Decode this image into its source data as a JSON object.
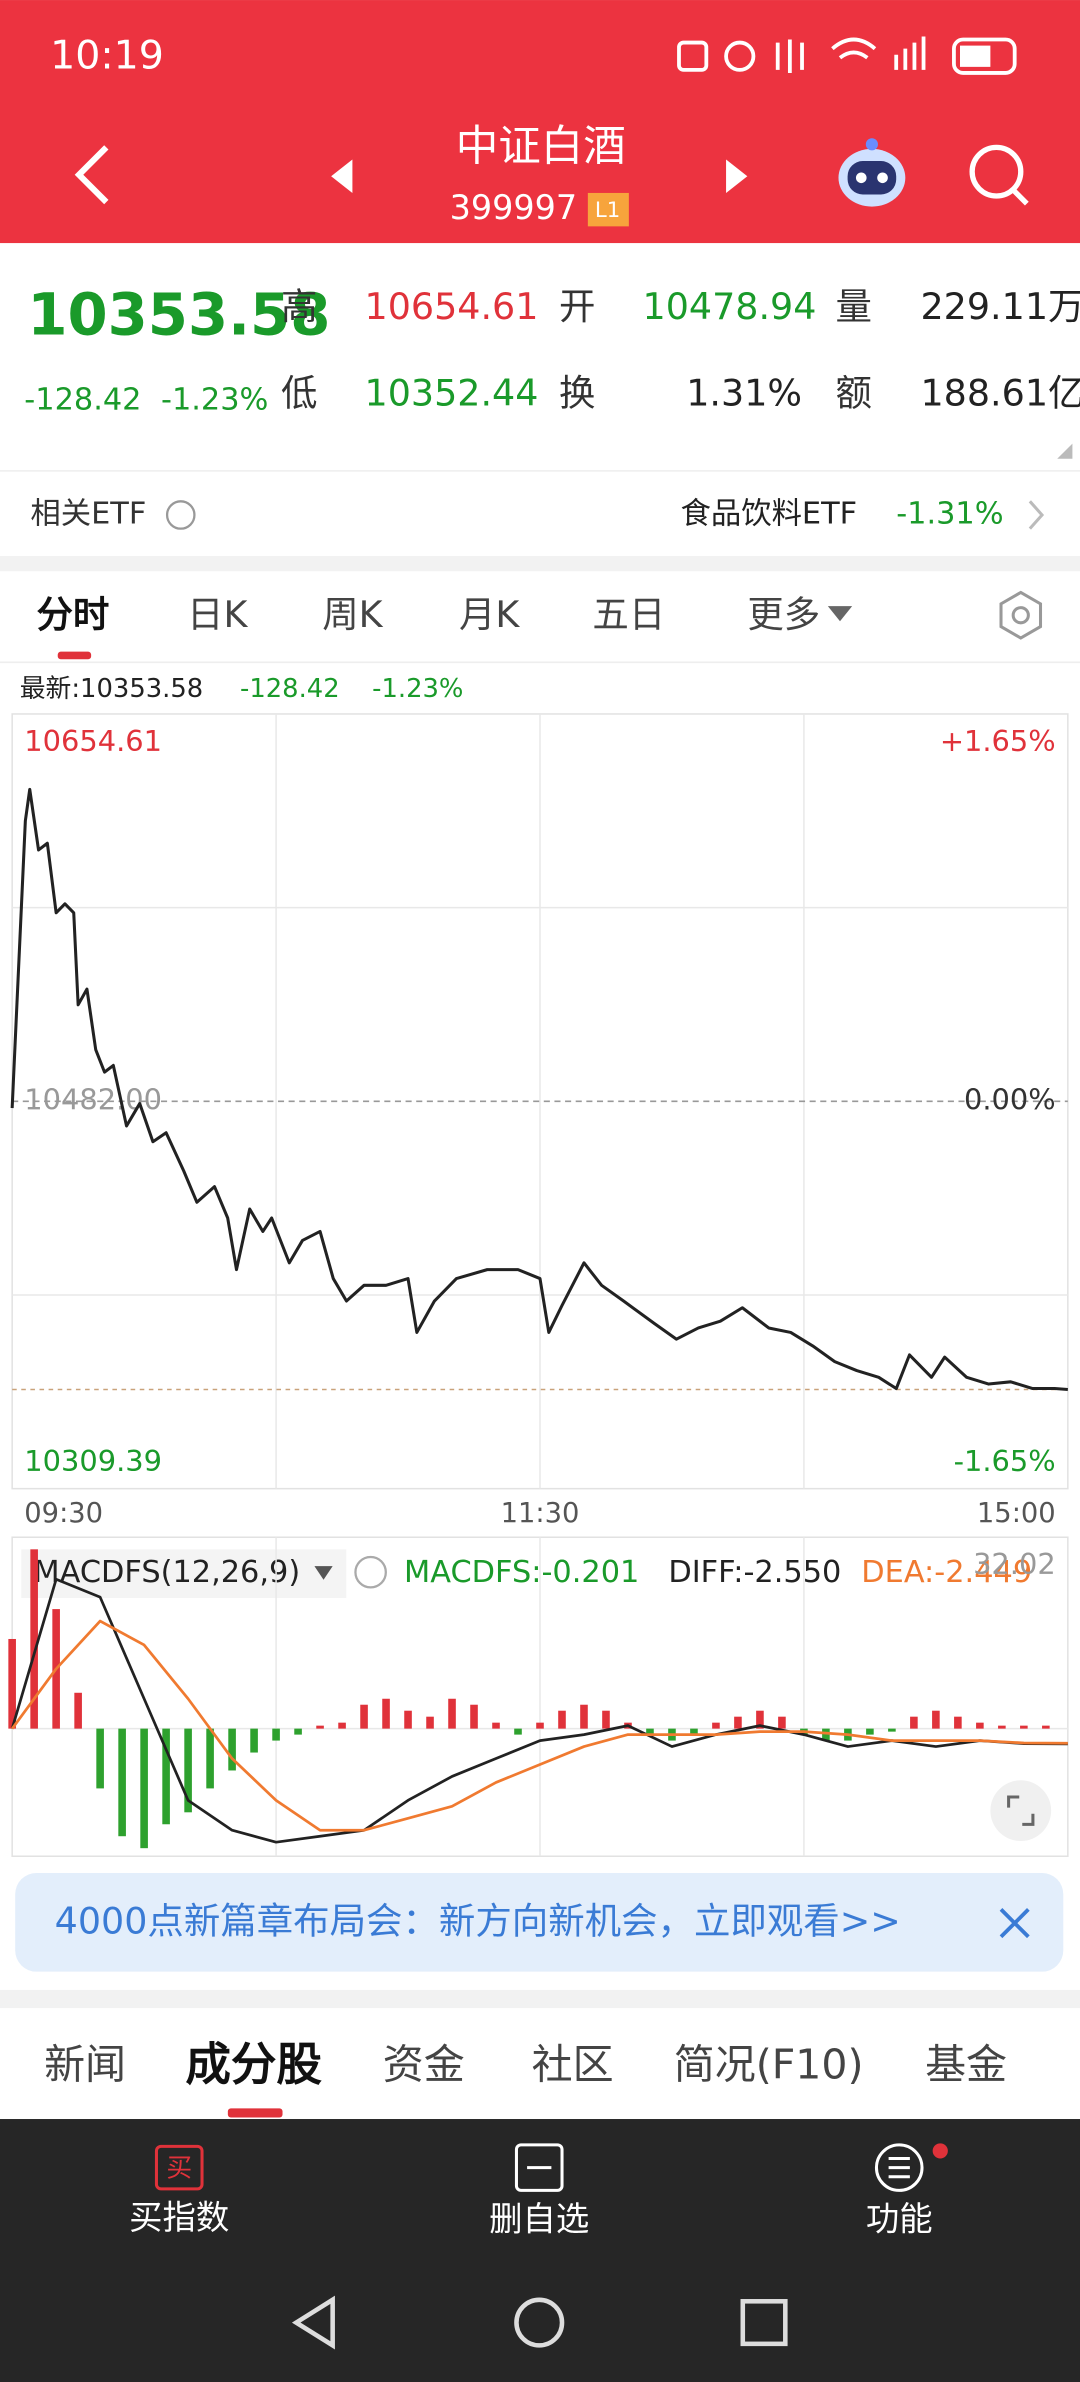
{
  "status_bar": {
    "time": "10:19"
  },
  "header": {
    "title": "中证白酒",
    "code": "399997",
    "level": "L1"
  },
  "quote": {
    "price": "10353.58",
    "change": "-128.42",
    "change_pct": "-1.23%",
    "fields": [
      {
        "label": "高",
        "value": "10654.61"
      },
      {
        "label": "开",
        "value": "10478.94"
      },
      {
        "label": "量",
        "value": "229.11万"
      },
      {
        "label": "低",
        "value": "10352.44"
      },
      {
        "label": "换",
        "value": "1.31%"
      },
      {
        "label": "额",
        "value": "188.61亿"
      }
    ]
  },
  "related_etf": {
    "label": "相关ETF",
    "name": "食品饮料ETF",
    "change": "-1.31%"
  },
  "tabs": [
    "分时",
    "日K",
    "周K",
    "月K",
    "五日",
    "更多"
  ],
  "latest": {
    "label": "最新:10353.58",
    "change": "-128.42",
    "change_pct": "-1.23%"
  },
  "chart_data": [
    {
      "type": "line",
      "color": "#222222",
      "x": [
        0,
        3,
        4,
        6,
        8,
        10,
        12,
        14,
        15,
        17,
        19,
        21,
        23,
        26,
        29,
        32,
        35,
        39,
        42,
        46,
        49,
        51,
        54,
        57,
        59,
        63,
        66,
        70,
        73,
        76,
        80,
        85,
        90,
        92,
        96,
        101,
        108,
        115,
        120,
        122,
        125,
        130,
        134,
        139,
        146,
        151,
        156,
        161,
        166,
        172,
        177,
        182,
        187,
        192,
        197,
        201,
        204,
        209,
        212,
        217,
        222,
        227,
        232,
        237,
        240
      ],
      "values": [
        10479,
        10607,
        10621,
        10594,
        10597,
        10566,
        10570,
        10566,
        10525,
        10532,
        10505,
        10495,
        10498,
        10471,
        10481,
        10464,
        10468,
        10451,
        10437,
        10444,
        10430,
        10407,
        10434,
        10424,
        10430,
        10410,
        10420,
        10424,
        10403,
        10393,
        10400,
        10400,
        10403,
        10379,
        10393,
        10403,
        10407,
        10407,
        10403,
        10379,
        10391,
        10410,
        10400,
        10393,
        10383,
        10376,
        10381,
        10384,
        10390,
        10381,
        10379,
        10373,
        10366,
        10362,
        10359,
        10354,
        10369,
        10359,
        10368,
        10359,
        10356,
        10357,
        10354,
        10354,
        10353.58
      ],
      "xlim": [
        0,
        240
      ],
      "xticks": [
        {
          "value": 0,
          "label": "09:30"
        },
        {
          "value": 60,
          "label": null
        },
        {
          "value": 120,
          "label": "11:30"
        },
        {
          "value": 180,
          "label": null
        },
        {
          "value": 240,
          "label": "15:00"
        }
      ],
      "ylim": [
        10309.39,
        10654.61
      ],
      "yticks": [
        10309.39,
        {
          "value": 10395.7,
          "label": null
        },
        {
          "value": 10482,
          "label": "10482.00"
        },
        {
          "value": 10568.3,
          "label": null
        },
        10654.61
      ],
      "y2lim": [
        -1.65,
        1.65
      ],
      "y2ticks": [
        {
          "value": -1.65,
          "label": "-1.65%"
        },
        {
          "value": 0,
          "label": "0.00%"
        },
        {
          "value": 1.65,
          "label": "+1.65%"
        }
      ]
    },
    {
      "type": "macd",
      "title": "MACDFS(12,26,9)",
      "readouts": [
        "MACDFS:-0.201",
        "DIFF:-2.550",
        "DEA:-2.449"
      ],
      "xlim": [
        0,
        240
      ],
      "ylim": [
        -21.35,
        32.02
      ],
      "yticks": [
        32.02
      ],
      "histogram": {
        "up_color": "#e0323a",
        "down_color": "#2ea12e",
        "x": [
          0,
          5,
          10,
          15,
          20,
          25,
          30,
          35,
          40,
          45,
          50,
          55,
          60,
          65,
          70,
          75,
          80,
          85,
          90,
          95,
          100,
          105,
          110,
          115,
          120,
          125,
          130,
          135,
          140,
          145,
          150,
          155,
          160,
          165,
          170,
          175,
          180,
          185,
          190,
          195,
          200,
          205,
          210,
          215,
          220,
          225,
          230,
          235
        ],
        "values": [
          15,
          30,
          20,
          6,
          -10,
          -18,
          -20,
          -16,
          -14,
          -10,
          -7,
          -4,
          -2,
          -1,
          0.5,
          1,
          4,
          5,
          3,
          2,
          5,
          4,
          1,
          -1,
          1,
          3,
          4,
          3,
          1,
          -1,
          -2,
          -1,
          1,
          2,
          3,
          2,
          -1,
          -2,
          -2,
          -1,
          -0.5,
          2,
          3,
          2,
          1,
          0.5,
          0.5,
          0.5
        ]
      },
      "series": [
        {
          "color": "#222222",
          "x": [
            0,
            10,
            20,
            30,
            40,
            50,
            60,
            70,
            80,
            90,
            100,
            110,
            120,
            130,
            140,
            150,
            160,
            170,
            180,
            190,
            200,
            210,
            220,
            230,
            240
          ],
          "values": [
            0,
            25,
            22,
            5,
            -12,
            -17,
            -19,
            -18,
            -17,
            -12,
            -8,
            -5,
            -2,
            -1,
            0.5,
            -3,
            -1,
            0.5,
            -1,
            -3,
            -2,
            -3,
            -2,
            -2.5,
            -2.55
          ]
        },
        {
          "color": "#f07a30",
          "x": [
            0,
            10,
            20,
            30,
            40,
            50,
            60,
            70,
            80,
            90,
            100,
            110,
            120,
            130,
            140,
            150,
            160,
            170,
            180,
            190,
            200,
            210,
            220,
            230,
            240
          ],
          "values": [
            0,
            10,
            18,
            14,
            5,
            -5,
            -12,
            -17,
            -17,
            -15,
            -13,
            -9,
            -6,
            -3,
            -1,
            -1,
            -1,
            -0.5,
            -0.5,
            -1,
            -2,
            -2,
            -2,
            -2.4,
            -2.449
          ]
        }
      ]
    }
  ],
  "banner": {
    "text": "4000点新篇章布局会：新方向新机会，立即观看>>"
  },
  "bottom_tabs": [
    "新闻",
    "成分股",
    "资金",
    "社区",
    "简况(F10)",
    "基金"
  ],
  "toolbar": {
    "buy_icon": "买",
    "items": [
      "买指数",
      "删自选",
      "功能"
    ]
  }
}
